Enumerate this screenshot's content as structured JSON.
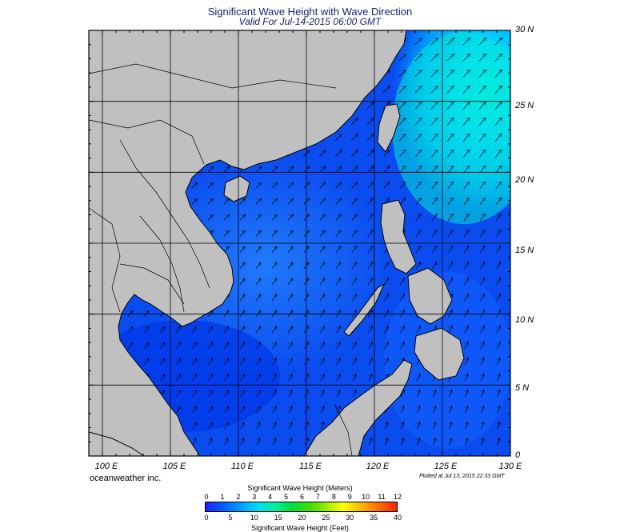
{
  "header": {
    "title": "Significant Wave Height with Wave Direction",
    "subtitle": "Valid For Jul-14-2015 06:00 GMT"
  },
  "map": {
    "region": "South China Sea",
    "lon_range": [
      99,
      130
    ],
    "lat_range": [
      0,
      30
    ],
    "lat_labels": [
      "30 N",
      "25 N",
      "20 N",
      "15 N",
      "10 N",
      "5 N",
      "0"
    ],
    "lon_labels": [
      "100 E",
      "105 E",
      "110 E",
      "115 E",
      "120 E",
      "125 E",
      "130 E"
    ],
    "land_color": "#c0c0c0",
    "arrow_direction": "northeastward"
  },
  "footer": {
    "credit": "oceanweather inc.",
    "plotted": "Plotted at Jul 13, 2015 22:33 GMT"
  },
  "colorbar": {
    "meters_title": "Significant Wave Height (Meters)",
    "feet_title": "Significant Wave Height (Feet)",
    "meters_ticks": [
      "0",
      "1",
      "2",
      "3",
      "4",
      "5",
      "6",
      "7",
      "8",
      "9",
      "10",
      "11",
      "12"
    ],
    "feet_ticks": [
      "0",
      "5",
      "10",
      "15",
      "20",
      "25",
      "30",
      "35",
      "40"
    ]
  }
}
